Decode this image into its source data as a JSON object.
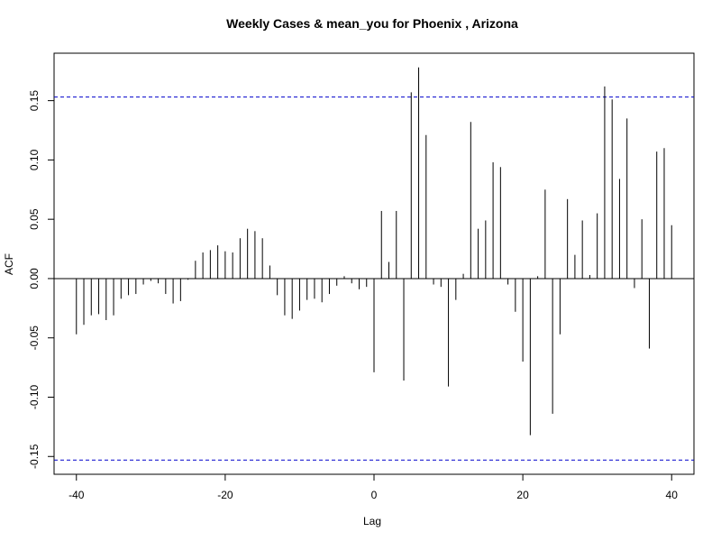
{
  "chart_data": {
    "type": "bar",
    "title": "Weekly Cases & mean_you for Phoenix , Arizona",
    "xlabel": "Lag",
    "ylabel": "ACF",
    "xlim": [
      -43,
      43
    ],
    "ylim": [
      -0.165,
      0.19
    ],
    "x_ticks": [
      -40,
      -20,
      0,
      20,
      40
    ],
    "x_tick_labels": [
      "-40",
      "-20",
      "0",
      "20",
      "40"
    ],
    "y_ticks": [
      -0.15,
      -0.1,
      -0.05,
      0.0,
      0.05,
      0.1,
      0.15
    ],
    "y_tick_labels": [
      "-0.15",
      "-0.10",
      "-0.05",
      "0.00",
      "0.05",
      "0.10",
      "0.15"
    ],
    "confidence_limit": 0.153,
    "confidence_line_color": "#0000cc",
    "bar_color": "#000000",
    "lags": [
      -40,
      -39,
      -38,
      -37,
      -36,
      -35,
      -34,
      -33,
      -32,
      -31,
      -30,
      -29,
      -28,
      -27,
      -26,
      -25,
      -24,
      -23,
      -22,
      -21,
      -20,
      -19,
      -18,
      -17,
      -16,
      -15,
      -14,
      -13,
      -12,
      -11,
      -10,
      -9,
      -8,
      -7,
      -6,
      -5,
      -4,
      -3,
      -2,
      -1,
      0,
      1,
      2,
      3,
      4,
      5,
      6,
      7,
      8,
      9,
      10,
      11,
      12,
      13,
      14,
      15,
      16,
      17,
      18,
      19,
      20,
      21,
      22,
      23,
      24,
      25,
      26,
      27,
      28,
      29,
      30,
      31,
      32,
      33,
      34,
      35,
      36,
      37,
      38,
      39,
      40
    ],
    "values": [
      -0.047,
      -0.039,
      -0.031,
      -0.03,
      -0.035,
      -0.031,
      -0.017,
      -0.014,
      -0.013,
      -0.005,
      -0.002,
      -0.004,
      -0.013,
      -0.021,
      -0.019,
      -0.001,
      0.015,
      0.022,
      0.024,
      0.028,
      0.023,
      0.022,
      0.034,
      0.042,
      0.04,
      0.034,
      0.011,
      -0.014,
      -0.031,
      -0.034,
      -0.027,
      -0.018,
      -0.017,
      -0.02,
      -0.013,
      -0.006,
      0.002,
      -0.004,
      -0.009,
      -0.007,
      -0.079,
      0.057,
      0.014,
      0.057,
      -0.086,
      0.157,
      0.178,
      0.121,
      -0.005,
      -0.007,
      -0.091,
      -0.018,
      0.004,
      0.132,
      0.042,
      0.049,
      0.098,
      0.094,
      -0.005,
      -0.028,
      -0.07,
      -0.132,
      0.002,
      0.075,
      -0.114,
      -0.047,
      0.067,
      0.02,
      0.049,
      0.003,
      0.055,
      0.162,
      0.151,
      0.084,
      0.135,
      -0.008,
      0.05,
      -0.059,
      0.107,
      0.11,
      0.045
    ]
  }
}
